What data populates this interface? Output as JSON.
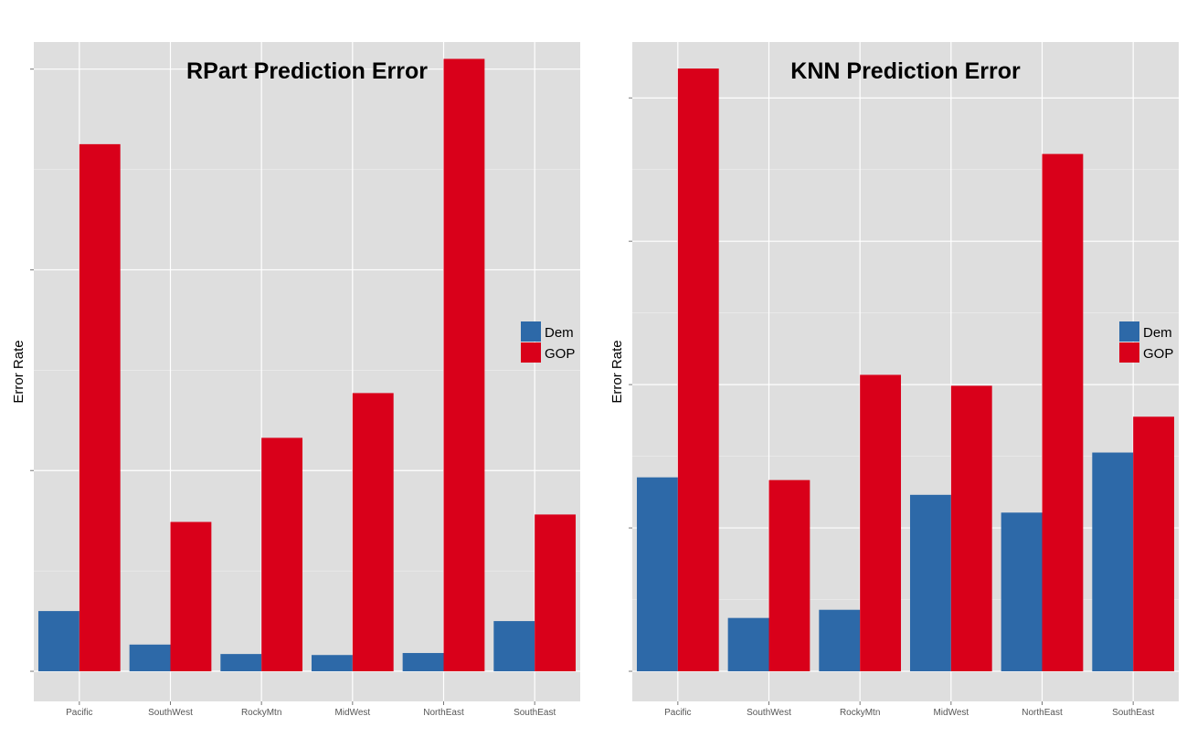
{
  "colors": {
    "panel_bg": "#dedede",
    "grid": "#ffffff",
    "dem": "#2d69a8",
    "gop": "#d9001a",
    "text": "#000000",
    "tick_text": "#555555"
  },
  "chart_data": [
    {
      "type": "bar",
      "title": "RPart Prediction Error",
      "xlabel": "",
      "ylabel": "Error Rate",
      "categories": [
        "Pacific",
        "SouthWest",
        "RockyMtn",
        "MidWest",
        "NorthEast",
        "SouthEast"
      ],
      "series": [
        {
          "name": "Dem",
          "color": "#2d69a8",
          "values": [
            0.03,
            0.0133,
            0.0086,
            0.0081,
            0.0091,
            0.025
          ]
        },
        {
          "name": "GOP",
          "color": "#d9001a",
          "values": [
            0.2626,
            0.0744,
            0.1163,
            0.1386,
            0.3051,
            0.0781
          ]
        }
      ],
      "ylim": [
        -0.015,
        0.3135
      ],
      "yticks": [
        0,
        0.1,
        0.2,
        0.3
      ],
      "grid": true,
      "legend_position": "right"
    },
    {
      "type": "bar",
      "title": "KNN Prediction Error",
      "xlabel": "",
      "ylabel": "Error Rate",
      "categories": [
        "Pacific",
        "SouthWest",
        "RockyMtn",
        "MidWest",
        "NorthEast",
        "SouthEast"
      ],
      "series": [
        {
          "name": "Dem",
          "color": "#2d69a8",
          "values": [
            0.1353,
            0.0372,
            0.0429,
            0.1231,
            0.1107,
            0.1526
          ]
        },
        {
          "name": "GOP",
          "color": "#d9001a",
          "values": [
            0.4205,
            0.1334,
            0.2068,
            0.1992,
            0.3609,
            0.1776
          ]
        }
      ],
      "ylim": [
        -0.021,
        0.439
      ],
      "yticks": [
        0,
        0.1,
        0.2,
        0.3,
        0.4
      ],
      "grid": true,
      "legend_position": "right"
    }
  ]
}
